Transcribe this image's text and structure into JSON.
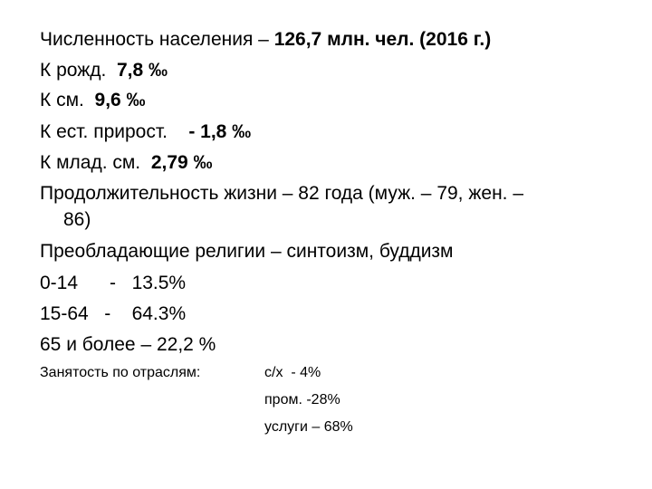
{
  "lines": [
    {
      "label": "Численность населения –",
      "value": "126,7 млн. чел. (2016 г.)"
    },
    {
      "label": "К рожд.",
      "value": "7,8 ‰"
    },
    {
      "label": "К см.",
      "value": "9,6 ‰"
    },
    {
      "label": "К ест. прирост.",
      "value": "- 1,8 ‰"
    },
    {
      "label": "К млад. см.",
      "value": "2,79 ‰"
    }
  ],
  "life": [
    "Продолжительность жизни – 82 года (муж. – 79, жен. –",
    "86)"
  ],
  "religion": "Преобладающие религии – синтоизм, буддизм",
  "age_groups": [
    {
      "group": "0-14",
      "dash": "-",
      "share": "13.5%"
    },
    {
      "group": "15-64",
      "dash": "-",
      "share": "64.3%"
    },
    {
      "text": "65 и более – 22,2 %"
    }
  ],
  "employment": {
    "label": "Занятость по отраслям:",
    "items": [
      "с/х  - 4%",
      "пром. -28%",
      "услуги – 68%"
    ]
  }
}
